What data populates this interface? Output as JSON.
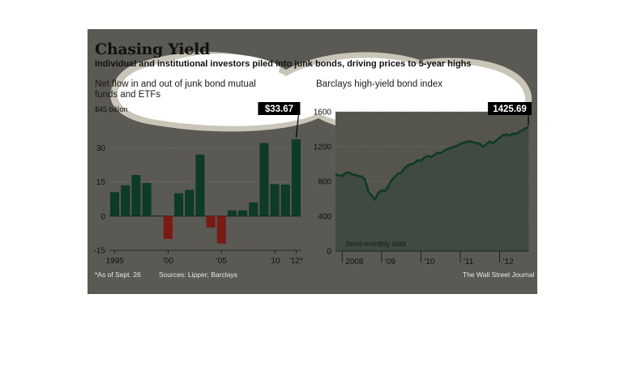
{
  "header": {
    "title": "Chasing Yield",
    "subtitle": "Individual and institutional investors piled into junk bonds, driving prices to 5-year highs"
  },
  "footer": {
    "footnote": "*As of Sept. 26",
    "sources": "Sources: Lipper; Barclays",
    "credit": "The Wall Street Journal"
  },
  "colors": {
    "panel_bg": "#5a5953",
    "bar_positive": "#0d3b25",
    "bar_negative": "#7a1a14",
    "line": "#0d3b25",
    "area_fill": "#3f4a40",
    "callout_bg": "#000000"
  },
  "chart_data": [
    {
      "type": "bar",
      "title_lines": [
        "Net flow in and out of junk bond mutual",
        "funds and ETFs"
      ],
      "unit_label": "$45 billion",
      "x": [
        1995,
        1996,
        1997,
        1998,
        1999,
        2000,
        2001,
        2002,
        2003,
        2004,
        2005,
        2006,
        2007,
        2008,
        2009,
        2010,
        2011,
        2012
      ],
      "values": [
        10.5,
        13.5,
        18,
        14.5,
        0.3,
        -10,
        10,
        11.5,
        27,
        -5,
        -12,
        2.5,
        2.5,
        6,
        32,
        14,
        13.8,
        33.67
      ],
      "ylim": [
        -15,
        45
      ],
      "yticks": [
        -15,
        0,
        15,
        30
      ],
      "xtick_labels": [
        {
          "x": 1995,
          "label": "1995"
        },
        {
          "x": 2000,
          "label": "'00"
        },
        {
          "x": 2005,
          "label": "'05"
        },
        {
          "x": 2010,
          "label": "'10"
        },
        {
          "x": 2012,
          "label": "'12*"
        }
      ],
      "callout": {
        "x": 2012,
        "label": "$33.67"
      },
      "grid": true
    },
    {
      "type": "area",
      "title": "Barclays high-yield bond index",
      "annotation": "Semi-monthly data",
      "ylim": [
        0,
        1600
      ],
      "yticks": [
        0,
        400,
        800,
        1200,
        1600
      ],
      "xlim": [
        2007.83,
        2012.75
      ],
      "xtick_labels": [
        {
          "x": 2008,
          "label": "2008"
        },
        {
          "x": 2009,
          "label": "'09"
        },
        {
          "x": 2010,
          "label": "'10"
        },
        {
          "x": 2011,
          "label": "'11"
        },
        {
          "x": 2012,
          "label": "'12"
        }
      ],
      "x": [
        2007.83,
        2007.92,
        2008.0,
        2008.08,
        2008.17,
        2008.25,
        2008.33,
        2008.42,
        2008.5,
        2008.58,
        2008.67,
        2008.75,
        2008.83,
        2008.92,
        2009.0,
        2009.08,
        2009.17,
        2009.25,
        2009.33,
        2009.42,
        2009.5,
        2009.58,
        2009.67,
        2009.75,
        2009.83,
        2009.92,
        2010.0,
        2010.08,
        2010.17,
        2010.25,
        2010.33,
        2010.42,
        2010.5,
        2010.58,
        2010.67,
        2010.75,
        2010.83,
        2010.92,
        2011.0,
        2011.08,
        2011.17,
        2011.25,
        2011.33,
        2011.42,
        2011.5,
        2011.58,
        2011.67,
        2011.75,
        2011.83,
        2011.92,
        2012.0,
        2012.08,
        2012.17,
        2012.25,
        2012.33,
        2012.42,
        2012.5,
        2012.58,
        2012.67,
        2012.73
      ],
      "values": [
        880,
        870,
        860,
        895,
        905,
        880,
        875,
        860,
        855,
        820,
        680,
        640,
        590,
        670,
        700,
        690,
        740,
        810,
        850,
        890,
        900,
        950,
        985,
        1000,
        1010,
        1045,
        1040,
        1070,
        1095,
        1080,
        1100,
        1130,
        1125,
        1150,
        1175,
        1185,
        1195,
        1210,
        1230,
        1245,
        1255,
        1260,
        1250,
        1240,
        1230,
        1200,
        1230,
        1260,
        1240,
        1275,
        1300,
        1330,
        1340,
        1325,
        1350,
        1345,
        1370,
        1390,
        1410,
        1425.69
      ],
      "callout": {
        "x": 2012.73,
        "label": "1425.69"
      },
      "grid": true
    }
  ]
}
